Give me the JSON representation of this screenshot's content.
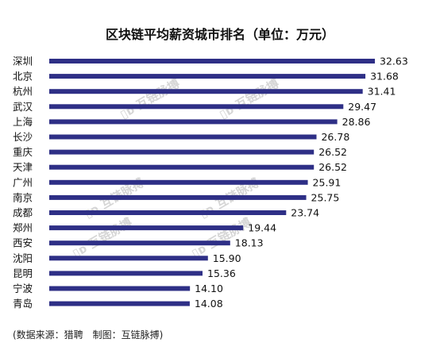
{
  "chart_data": {
    "type": "bar",
    "orientation": "horizontal",
    "title": "区块链平均薪资城市排名（单位：万元）",
    "categories": [
      "深圳",
      "北京",
      "杭州",
      "武汉",
      "上海",
      "长沙",
      "重庆",
      "天津",
      "广州",
      "南京",
      "成都",
      "郑州",
      "西安",
      "沈阳",
      "昆明",
      "宁波",
      "青岛"
    ],
    "values": [
      32.63,
      31.68,
      31.41,
      29.47,
      28.86,
      26.78,
      26.52,
      26.52,
      25.91,
      25.75,
      23.74,
      19.44,
      18.13,
      15.9,
      15.36,
      14.1,
      14.08
    ],
    "value_labels": [
      "32.63",
      "31.68",
      "31.41",
      "29.47",
      "28.86",
      "26.78",
      "26.52",
      "26.52",
      "25.91",
      "25.75",
      "23.74",
      "19.44",
      "18.13",
      "15.90",
      "15.36",
      "14.10",
      "14.08"
    ],
    "bar_color": "#2e2f86",
    "xlim": [
      0,
      32.63
    ],
    "grid": false,
    "legend": "none"
  },
  "watermark_text": "互链脉搏",
  "footer": "(数据来源：猎聘　制图：互链脉搏)"
}
